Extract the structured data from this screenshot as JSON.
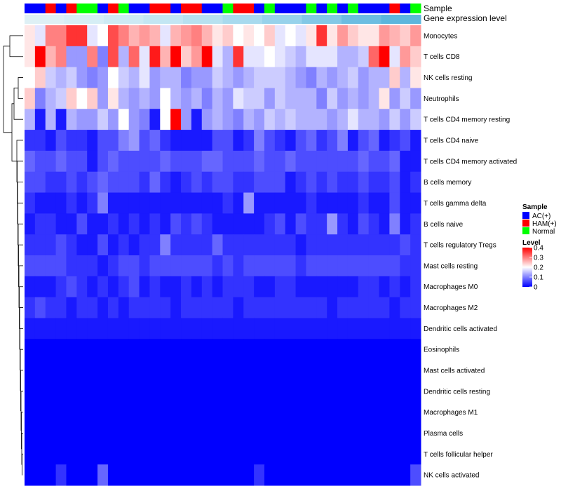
{
  "chart_data": {
    "type": "heatmap",
    "annotation_labels": {
      "sample": "Sample",
      "expression": "Gene expression level"
    },
    "sample_groups": [
      "B",
      "B",
      "R",
      "B",
      "R",
      "G",
      "G",
      "B",
      "R",
      "G",
      "B",
      "B",
      "R",
      "R",
      "B",
      "R",
      "R",
      "B",
      "B",
      "G",
      "R",
      "R",
      "B",
      "G",
      "B",
      "B",
      "B",
      "G",
      "B",
      "G",
      "B",
      "G",
      "B",
      "B",
      "B",
      "R",
      "B",
      "G"
    ],
    "sample_group_names": {
      "B": "AC(+)",
      "R": "HAM(+)",
      "G": "Normal"
    },
    "sample_colors": {
      "B": "#0000ff",
      "R": "#ff0000",
      "G": "#00ff00"
    },
    "expression_colors": [
      "#def0f5",
      "#d6eef5",
      "#cdeaf4",
      "#c3e6f3",
      "#b7e1f0",
      "#a8daee",
      "#97d2eb",
      "#82c8e6",
      "#6cbde1",
      "#5cb6dd"
    ],
    "rows": [
      {
        "label": "Monocytes",
        "values": [
          0.22,
          0.18,
          0.3,
          0.3,
          0.36,
          0.36,
          0.18,
          0.2,
          0.34,
          0.3,
          0.26,
          0.28,
          0.26,
          0.18,
          0.26,
          0.28,
          0.3,
          0.26,
          0.22,
          0.24,
          0.2,
          0.22,
          0.2,
          0.24,
          0.18,
          0.2,
          0.18,
          0.22,
          0.36,
          0.22,
          0.28,
          0.24,
          0.22,
          0.22,
          0.28,
          0.26,
          0.24,
          0.28
        ]
      },
      {
        "label": "T cells CD8",
        "values": [
          0.22,
          0.4,
          0.26,
          0.3,
          0.12,
          0.12,
          0.3,
          0.1,
          0.34,
          0.14,
          0.32,
          0.18,
          0.38,
          0.26,
          0.4,
          0.24,
          0.28,
          0.4,
          0.18,
          0.14,
          0.36,
          0.18,
          0.18,
          0.2,
          0.18,
          0.16,
          0.14,
          0.18,
          0.18,
          0.18,
          0.14,
          0.14,
          0.16,
          0.32,
          0.4,
          0.18,
          0.28,
          0.24
        ]
      },
      {
        "label": "NK cells resting",
        "values": [
          0.2,
          0.24,
          0.16,
          0.14,
          0.16,
          0.12,
          0.1,
          0.12,
          0.2,
          0.16,
          0.14,
          0.18,
          0.12,
          0.14,
          0.14,
          0.1,
          0.12,
          0.12,
          0.16,
          0.14,
          0.12,
          0.14,
          0.16,
          0.16,
          0.16,
          0.14,
          0.12,
          0.1,
          0.14,
          0.12,
          0.14,
          0.16,
          0.12,
          0.14,
          0.14,
          0.24,
          0.14,
          0.22
        ]
      },
      {
        "label": "Neutrophils",
        "values": [
          0.24,
          0.1,
          0.14,
          0.16,
          0.24,
          0.2,
          0.24,
          0.12,
          0.22,
          0.14,
          0.12,
          0.14,
          0.12,
          0.2,
          0.14,
          0.12,
          0.14,
          0.1,
          0.14,
          0.12,
          0.18,
          0.16,
          0.16,
          0.12,
          0.16,
          0.14,
          0.14,
          0.14,
          0.1,
          0.16,
          0.12,
          0.14,
          0.12,
          0.14,
          0.22,
          0.12,
          0.16,
          0.12
        ]
      },
      {
        "label": "T cells CD4 memory resting",
        "values": [
          0.14,
          0.02,
          0.14,
          0.02,
          0.14,
          0.12,
          0.12,
          0.16,
          0.12,
          0.2,
          0.12,
          0.1,
          0.02,
          0.2,
          0.4,
          0.12,
          0.02,
          0.12,
          0.14,
          0.12,
          0.1,
          0.14,
          0.12,
          0.16,
          0.14,
          0.16,
          0.14,
          0.14,
          0.14,
          0.12,
          0.14,
          0.18,
          0.14,
          0.14,
          0.12,
          0.16,
          0.12,
          0.16
        ]
      },
      {
        "label": "T cells CD4 naive",
        "values": [
          0.04,
          0.04,
          0.02,
          0.06,
          0.04,
          0.04,
          0.02,
          0.06,
          0.06,
          0.1,
          0.12,
          0.06,
          0.08,
          0.04,
          0.02,
          0.02,
          0.02,
          0.02,
          0.06,
          0.06,
          0.02,
          0.04,
          0.1,
          0.06,
          0.04,
          0.02,
          0.06,
          0.08,
          0.04,
          0.06,
          0.1,
          0.02,
          0.06,
          0.08,
          0.02,
          0.04,
          0.06,
          0.02
        ]
      },
      {
        "label": "T cells CD4 memory activated",
        "values": [
          0.08,
          0.06,
          0.06,
          0.08,
          0.06,
          0.06,
          0.02,
          0.06,
          0.08,
          0.06,
          0.06,
          0.06,
          0.06,
          0.08,
          0.06,
          0.06,
          0.06,
          0.08,
          0.08,
          0.06,
          0.06,
          0.06,
          0.08,
          0.06,
          0.06,
          0.08,
          0.06,
          0.06,
          0.06,
          0.06,
          0.06,
          0.06,
          0.08,
          0.06,
          0.06,
          0.08,
          0.02,
          0.02
        ]
      },
      {
        "label": "B cells memory",
        "values": [
          0.06,
          0.06,
          0.04,
          0.04,
          0.06,
          0.04,
          0.06,
          0.08,
          0.06,
          0.06,
          0.06,
          0.04,
          0.08,
          0.04,
          0.02,
          0.04,
          0.06,
          0.04,
          0.06,
          0.06,
          0.04,
          0.04,
          0.06,
          0.06,
          0.06,
          0.02,
          0.04,
          0.06,
          0.04,
          0.06,
          0.04,
          0.04,
          0.06,
          0.04,
          0.04,
          0.06,
          0.02,
          0.04
        ]
      },
      {
        "label": "T cells gamma delta",
        "values": [
          0.04,
          0.02,
          0.02,
          0.02,
          0.04,
          0.02,
          0.04,
          0.1,
          0.02,
          0.02,
          0.02,
          0.02,
          0.02,
          0.02,
          0.02,
          0.02,
          0.02,
          0.02,
          0.02,
          0.04,
          0.02,
          0.12,
          0.02,
          0.02,
          0.02,
          0.02,
          0.02,
          0.04,
          0.02,
          0.02,
          0.02,
          0.02,
          0.04,
          0.02,
          0.02,
          0.06,
          0.02,
          0.02
        ]
      },
      {
        "label": "B cells naive",
        "values": [
          0.02,
          0.04,
          0.04,
          0.02,
          0.02,
          0.06,
          0.02,
          0.02,
          0.04,
          0.02,
          0.04,
          0.02,
          0.04,
          0.02,
          0.06,
          0.04,
          0.06,
          0.04,
          0.02,
          0.02,
          0.02,
          0.02,
          0.02,
          0.04,
          0.06,
          0.02,
          0.06,
          0.04,
          0.04,
          0.12,
          0.04,
          0.02,
          0.06,
          0.04,
          0.02,
          0.1,
          0.02,
          0.04
        ]
      },
      {
        "label": "T cells regulatory  Tregs",
        "values": [
          0.04,
          0.04,
          0.04,
          0.06,
          0.04,
          0.02,
          0.02,
          0.06,
          0.02,
          0.04,
          0.02,
          0.04,
          0.04,
          0.1,
          0.04,
          0.04,
          0.04,
          0.04,
          0.08,
          0.04,
          0.04,
          0.04,
          0.04,
          0.04,
          0.04,
          0.04,
          0.02,
          0.04,
          0.04,
          0.04,
          0.04,
          0.04,
          0.04,
          0.04,
          0.04,
          0.04,
          0.06,
          0.04
        ]
      },
      {
        "label": "Mast cells resting",
        "values": [
          0.06,
          0.06,
          0.06,
          0.06,
          0.04,
          0.04,
          0.04,
          0.02,
          0.04,
          0.06,
          0.06,
          0.04,
          0.06,
          0.06,
          0.06,
          0.06,
          0.06,
          0.06,
          0.04,
          0.06,
          0.04,
          0.06,
          0.06,
          0.06,
          0.06,
          0.06,
          0.04,
          0.06,
          0.06,
          0.06,
          0.06,
          0.06,
          0.06,
          0.06,
          0.06,
          0.06,
          0.04,
          0.04
        ]
      },
      {
        "label": "Macrophages M0",
        "values": [
          0.02,
          0.02,
          0.02,
          0.04,
          0.06,
          0.04,
          0.02,
          0.04,
          0.02,
          0.04,
          0.06,
          0.02,
          0.04,
          0.02,
          0.02,
          0.04,
          0.02,
          0.04,
          0.02,
          0.04,
          0.04,
          0.04,
          0.02,
          0.02,
          0.04,
          0.04,
          0.02,
          0.02,
          0.02,
          0.02,
          0.02,
          0.02,
          0.04,
          0.04,
          0.02,
          0.04,
          0.02,
          0.04
        ]
      },
      {
        "label": "Macrophages M2",
        "values": [
          0.04,
          0.06,
          0.04,
          0.04,
          0.02,
          0.04,
          0.04,
          0.02,
          0.04,
          0.02,
          0.04,
          0.04,
          0.04,
          0.04,
          0.02,
          0.04,
          0.04,
          0.04,
          0.04,
          0.04,
          0.02,
          0.04,
          0.04,
          0.04,
          0.04,
          0.04,
          0.04,
          0.04,
          0.04,
          0.02,
          0.04,
          0.04,
          0.04,
          0.04,
          0.04,
          0.02,
          0.04,
          0.04
        ]
      },
      {
        "label": "Dendritic cells activated",
        "values": [
          0.02,
          0.02,
          0.02,
          0.02,
          0.02,
          0.02,
          0.02,
          0.02,
          0.02,
          0.02,
          0.02,
          0.02,
          0.02,
          0.02,
          0.02,
          0.02,
          0.02,
          0.02,
          0.02,
          0.02,
          0.02,
          0.02,
          0.02,
          0.02,
          0.02,
          0.02,
          0.02,
          0.02,
          0.02,
          0.02,
          0.02,
          0.02,
          0.02,
          0.02,
          0.02,
          0.02,
          0.02,
          0.02
        ]
      },
      {
        "label": "Eosinophils",
        "values": [
          0,
          0,
          0,
          0,
          0,
          0,
          0,
          0,
          0,
          0,
          0,
          0,
          0,
          0,
          0,
          0,
          0,
          0,
          0,
          0,
          0,
          0,
          0,
          0,
          0,
          0,
          0,
          0,
          0,
          0,
          0,
          0,
          0,
          0,
          0,
          0,
          0,
          0
        ]
      },
      {
        "label": "Mast cells activated",
        "values": [
          0,
          0,
          0,
          0,
          0,
          0,
          0,
          0,
          0,
          0,
          0,
          0,
          0,
          0,
          0,
          0,
          0,
          0,
          0,
          0,
          0,
          0,
          0,
          0,
          0,
          0,
          0,
          0,
          0,
          0,
          0,
          0,
          0,
          0,
          0,
          0,
          0,
          0
        ]
      },
      {
        "label": "Dendritic cells resting",
        "values": [
          0,
          0,
          0,
          0,
          0,
          0,
          0,
          0,
          0,
          0,
          0,
          0,
          0,
          0,
          0,
          0,
          0,
          0,
          0,
          0,
          0,
          0,
          0,
          0,
          0,
          0,
          0,
          0,
          0,
          0,
          0,
          0,
          0,
          0,
          0,
          0,
          0,
          0
        ]
      },
      {
        "label": "Macrophages M1",
        "values": [
          0,
          0,
          0,
          0,
          0,
          0,
          0,
          0,
          0,
          0,
          0,
          0,
          0,
          0,
          0,
          0,
          0,
          0,
          0,
          0,
          0,
          0,
          0,
          0,
          0,
          0,
          0,
          0,
          0,
          0,
          0,
          0,
          0,
          0,
          0,
          0,
          0,
          0
        ]
      },
      {
        "label": "Plasma cells",
        "values": [
          0,
          0,
          0,
          0,
          0,
          0,
          0,
          0,
          0,
          0,
          0,
          0,
          0,
          0,
          0,
          0,
          0,
          0,
          0,
          0,
          0,
          0,
          0,
          0,
          0,
          0,
          0,
          0,
          0,
          0,
          0,
          0,
          0,
          0,
          0,
          0,
          0,
          0
        ]
      },
      {
        "label": "T cells follicular helper",
        "values": [
          0,
          0,
          0,
          0,
          0,
          0,
          0,
          0,
          0,
          0,
          0,
          0,
          0,
          0,
          0,
          0,
          0,
          0,
          0,
          0,
          0,
          0,
          0,
          0,
          0,
          0,
          0,
          0,
          0,
          0,
          0,
          0,
          0,
          0,
          0,
          0,
          0,
          0
        ]
      },
      {
        "label": "NK cells activated",
        "values": [
          0,
          0,
          0,
          0.04,
          0,
          0,
          0,
          0.08,
          0,
          0,
          0,
          0,
          0,
          0,
          0,
          0,
          0,
          0,
          0,
          0,
          0,
          0,
          0.04,
          0,
          0,
          0,
          0,
          0,
          0,
          0,
          0,
          0,
          0,
          0,
          0,
          0,
          0,
          0.06
        ]
      }
    ],
    "legend": {
      "sample_title": "Sample",
      "level_title": "Level",
      "level_ticks": [
        "0.4",
        "0.3",
        "0.2",
        "0.1",
        "0"
      ],
      "level_tick_values": [
        0.4,
        0.3,
        0.2,
        0.1,
        0
      ],
      "color_scale": {
        "min": 0,
        "mid": 0.2,
        "max": 0.4,
        "low": "#0000ff",
        "mid_color": "#ffffff",
        "high": "#ff0000"
      }
    }
  }
}
